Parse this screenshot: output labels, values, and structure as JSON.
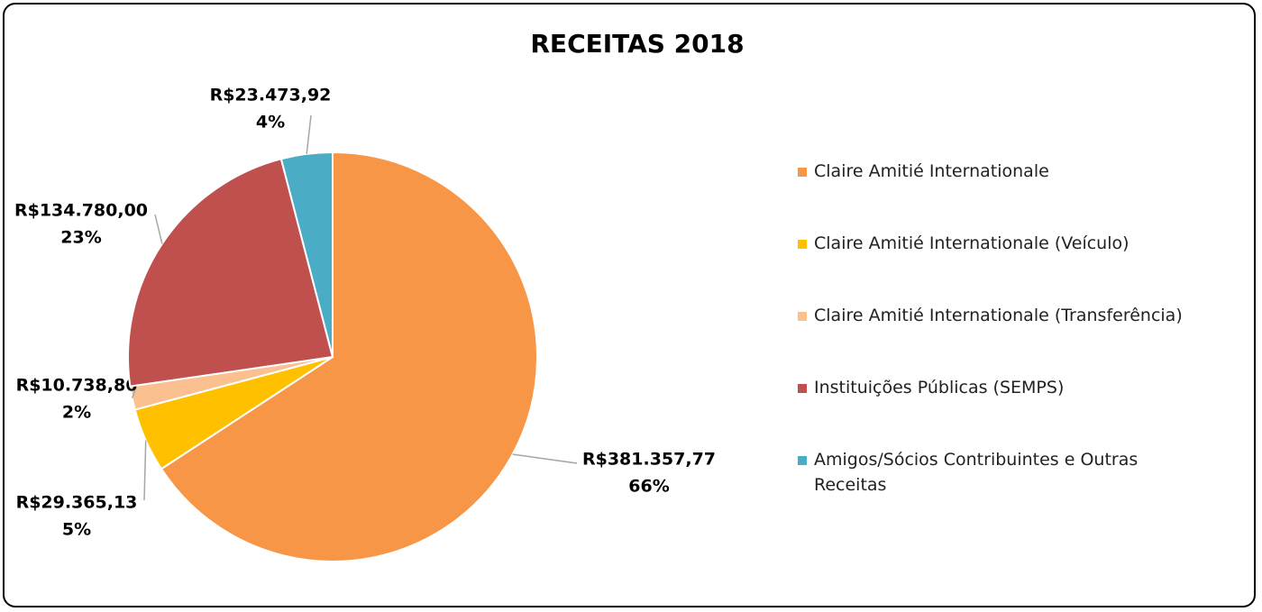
{
  "chart_data": {
    "type": "pie",
    "title": "RECEITAS 2018",
    "categories": [
      "Claire Amitié Internationale",
      "Claire Amitié Internationale (Veículo)",
      "Claire Amitié Internationale (Transferência)",
      "Instituições Públicas (SEMPS)",
      "Amigos/Sócios Contribuintes e Outras Receitas"
    ],
    "values": [
      381357.77,
      29365.13,
      10738.86,
      134780.0,
      23473.92
    ],
    "value_labels": [
      "R$381.357,77",
      "R$29.365,13",
      "R$10.738,86",
      "R$134.780,00",
      "R$23.473,92"
    ],
    "percents": [
      66,
      5,
      2,
      23,
      4
    ],
    "percent_labels": [
      "66%",
      "5%",
      "2%",
      "23%",
      "4%"
    ],
    "colors": [
      "#f79646",
      "#ffc000",
      "#fac090",
      "#c0504d",
      "#4bacc6"
    ],
    "legend": "right"
  }
}
